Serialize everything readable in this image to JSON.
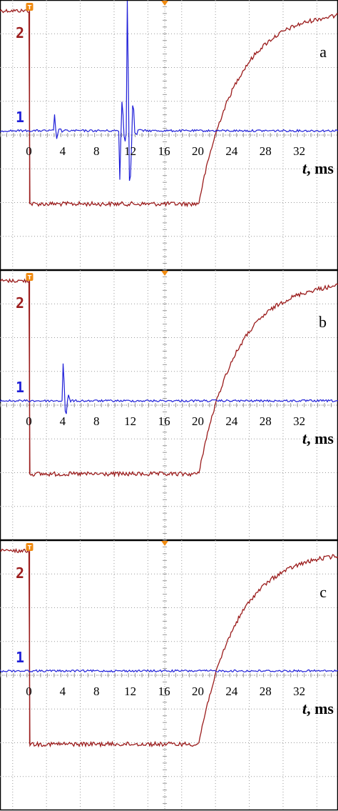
{
  "colors": {
    "channel_1": "#1f1fd8",
    "channel_2": "#9b1c1c",
    "trigger_marker": "#f08a10",
    "grid": "#9a9a9a",
    "frame": "#000000"
  },
  "trigger_marker_letter": "T",
  "chart_data": [
    {
      "type": "line",
      "panel": "a",
      "xlabel_italic": "t",
      "xlabel_rest": ", ms",
      "x_ticks": [
        "0",
        "4",
        "8",
        "12",
        "16",
        "20",
        "24",
        "28",
        "32"
      ],
      "xlim": [
        -3.5,
        36.5
      ],
      "grid": true,
      "channels": [
        {
          "marker": "1",
          "description_level": "baseline",
          "bursts_at_ms": [
            3.0,
            10.8,
            11.6,
            12.2
          ]
        },
        {
          "marker": "2",
          "step_down_at_ms": 0,
          "recovery_start_ms": 20,
          "recovery_tau_ms": 4.5
        }
      ]
    },
    {
      "type": "line",
      "panel": "b",
      "xlabel_italic": "t",
      "xlabel_rest": ", ms",
      "x_ticks": [
        "0",
        "4",
        "8",
        "12",
        "16",
        "20",
        "24",
        "28",
        "32"
      ],
      "xlim": [
        -3.5,
        36.5
      ],
      "grid": true,
      "channels": [
        {
          "marker": "1",
          "description_level": "baseline",
          "bursts_at_ms": [
            4.0
          ]
        },
        {
          "marker": "2",
          "step_down_at_ms": 0,
          "recovery_start_ms": 20,
          "recovery_tau_ms": 4.5
        }
      ]
    },
    {
      "type": "line",
      "panel": "c",
      "xlabel_italic": "t",
      "xlabel_rest": ", ms",
      "x_ticks": [
        "0",
        "4",
        "8",
        "12",
        "16",
        "20",
        "24",
        "28",
        "32"
      ],
      "xlim": [
        -3.5,
        36.5
      ],
      "grid": true,
      "channels": [
        {
          "marker": "1",
          "description_level": "baseline",
          "bursts_at_ms": []
        },
        {
          "marker": "2",
          "step_down_at_ms": 0,
          "recovery_start_ms": 20,
          "recovery_tau_ms": 4.5
        }
      ]
    }
  ]
}
